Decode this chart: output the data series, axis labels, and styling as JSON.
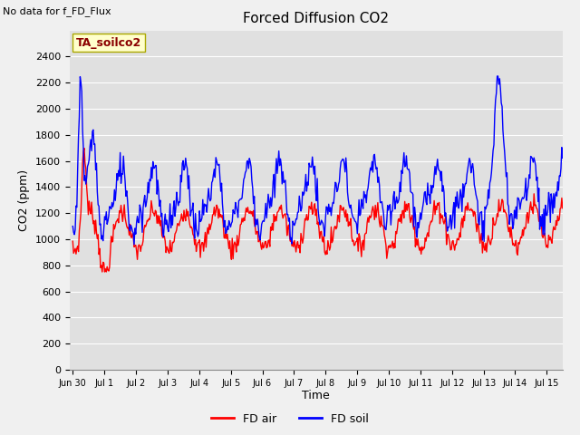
{
  "title": "Forced Diffusion CO2",
  "top_left_text": "No data for f_FD_Flux",
  "annotation_text": "TA_soilco2",
  "xlabel": "Time",
  "ylabel": "CO2 (ppm)",
  "ylim": [
    0,
    2600
  ],
  "yticks": [
    0,
    200,
    400,
    600,
    800,
    1000,
    1200,
    1400,
    1600,
    1800,
    2000,
    2200,
    2400
  ],
  "figure_bg": "#f0f0f0",
  "plot_bg": "#e0e0e0",
  "grid_color": "#ffffff",
  "line_color_red": "#ff0000",
  "line_color_blue": "#0000ff",
  "legend_labels": [
    "FD air",
    "FD soil"
  ],
  "x_tick_labels": [
    "Jun 30",
    "Jul 1",
    "Jul 2",
    "Jul 3",
    "Jul 4",
    "Jul 5",
    "Jul 6",
    "Jul 7",
    "Jul 8",
    "Jul 9",
    "Jul 10",
    "Jul 11",
    "Jul 12",
    "Jul 13",
    "Jul 14",
    "Jul 15"
  ]
}
